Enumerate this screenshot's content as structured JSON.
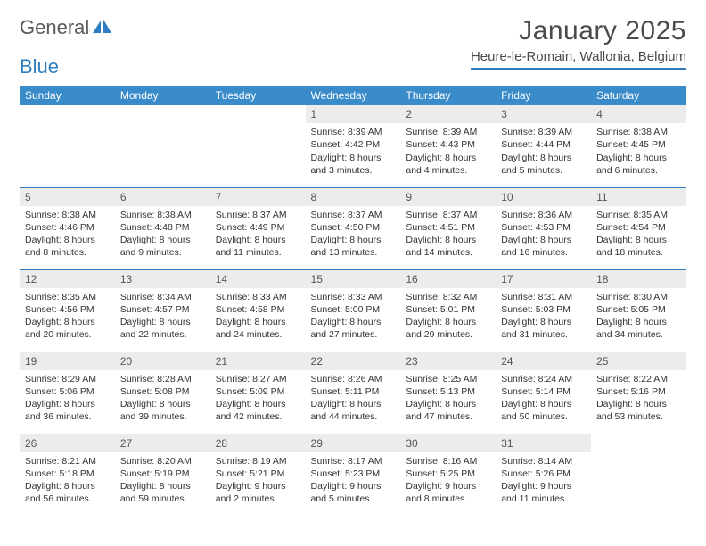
{
  "brand": {
    "word1": "General",
    "word2": "Blue"
  },
  "title": "January 2025",
  "location": "Heure-le-Romain, Wallonia, Belgium",
  "colors": {
    "header_bg": "#3a8bca",
    "accent_line": "#2f7dc0",
    "daynum_bg": "#ececec",
    "text": "#333333",
    "title_text": "#4a4a4a"
  },
  "day_labels": [
    "Sunday",
    "Monday",
    "Tuesday",
    "Wednesday",
    "Thursday",
    "Friday",
    "Saturday"
  ],
  "weeks": [
    [
      {
        "n": "",
        "sr": "",
        "ss": "",
        "dl": ""
      },
      {
        "n": "",
        "sr": "",
        "ss": "",
        "dl": ""
      },
      {
        "n": "",
        "sr": "",
        "ss": "",
        "dl": ""
      },
      {
        "n": "1",
        "sr": "Sunrise: 8:39 AM",
        "ss": "Sunset: 4:42 PM",
        "dl": "Daylight: 8 hours and 3 minutes."
      },
      {
        "n": "2",
        "sr": "Sunrise: 8:39 AM",
        "ss": "Sunset: 4:43 PM",
        "dl": "Daylight: 8 hours and 4 minutes."
      },
      {
        "n": "3",
        "sr": "Sunrise: 8:39 AM",
        "ss": "Sunset: 4:44 PM",
        "dl": "Daylight: 8 hours and 5 minutes."
      },
      {
        "n": "4",
        "sr": "Sunrise: 8:38 AM",
        "ss": "Sunset: 4:45 PM",
        "dl": "Daylight: 8 hours and 6 minutes."
      }
    ],
    [
      {
        "n": "5",
        "sr": "Sunrise: 8:38 AM",
        "ss": "Sunset: 4:46 PM",
        "dl": "Daylight: 8 hours and 8 minutes."
      },
      {
        "n": "6",
        "sr": "Sunrise: 8:38 AM",
        "ss": "Sunset: 4:48 PM",
        "dl": "Daylight: 8 hours and 9 minutes."
      },
      {
        "n": "7",
        "sr": "Sunrise: 8:37 AM",
        "ss": "Sunset: 4:49 PM",
        "dl": "Daylight: 8 hours and 11 minutes."
      },
      {
        "n": "8",
        "sr": "Sunrise: 8:37 AM",
        "ss": "Sunset: 4:50 PM",
        "dl": "Daylight: 8 hours and 13 minutes."
      },
      {
        "n": "9",
        "sr": "Sunrise: 8:37 AM",
        "ss": "Sunset: 4:51 PM",
        "dl": "Daylight: 8 hours and 14 minutes."
      },
      {
        "n": "10",
        "sr": "Sunrise: 8:36 AM",
        "ss": "Sunset: 4:53 PM",
        "dl": "Daylight: 8 hours and 16 minutes."
      },
      {
        "n": "11",
        "sr": "Sunrise: 8:35 AM",
        "ss": "Sunset: 4:54 PM",
        "dl": "Daylight: 8 hours and 18 minutes."
      }
    ],
    [
      {
        "n": "12",
        "sr": "Sunrise: 8:35 AM",
        "ss": "Sunset: 4:56 PM",
        "dl": "Daylight: 8 hours and 20 minutes."
      },
      {
        "n": "13",
        "sr": "Sunrise: 8:34 AM",
        "ss": "Sunset: 4:57 PM",
        "dl": "Daylight: 8 hours and 22 minutes."
      },
      {
        "n": "14",
        "sr": "Sunrise: 8:33 AM",
        "ss": "Sunset: 4:58 PM",
        "dl": "Daylight: 8 hours and 24 minutes."
      },
      {
        "n": "15",
        "sr": "Sunrise: 8:33 AM",
        "ss": "Sunset: 5:00 PM",
        "dl": "Daylight: 8 hours and 27 minutes."
      },
      {
        "n": "16",
        "sr": "Sunrise: 8:32 AM",
        "ss": "Sunset: 5:01 PM",
        "dl": "Daylight: 8 hours and 29 minutes."
      },
      {
        "n": "17",
        "sr": "Sunrise: 8:31 AM",
        "ss": "Sunset: 5:03 PM",
        "dl": "Daylight: 8 hours and 31 minutes."
      },
      {
        "n": "18",
        "sr": "Sunrise: 8:30 AM",
        "ss": "Sunset: 5:05 PM",
        "dl": "Daylight: 8 hours and 34 minutes."
      }
    ],
    [
      {
        "n": "19",
        "sr": "Sunrise: 8:29 AM",
        "ss": "Sunset: 5:06 PM",
        "dl": "Daylight: 8 hours and 36 minutes."
      },
      {
        "n": "20",
        "sr": "Sunrise: 8:28 AM",
        "ss": "Sunset: 5:08 PM",
        "dl": "Daylight: 8 hours and 39 minutes."
      },
      {
        "n": "21",
        "sr": "Sunrise: 8:27 AM",
        "ss": "Sunset: 5:09 PM",
        "dl": "Daylight: 8 hours and 42 minutes."
      },
      {
        "n": "22",
        "sr": "Sunrise: 8:26 AM",
        "ss": "Sunset: 5:11 PM",
        "dl": "Daylight: 8 hours and 44 minutes."
      },
      {
        "n": "23",
        "sr": "Sunrise: 8:25 AM",
        "ss": "Sunset: 5:13 PM",
        "dl": "Daylight: 8 hours and 47 minutes."
      },
      {
        "n": "24",
        "sr": "Sunrise: 8:24 AM",
        "ss": "Sunset: 5:14 PM",
        "dl": "Daylight: 8 hours and 50 minutes."
      },
      {
        "n": "25",
        "sr": "Sunrise: 8:22 AM",
        "ss": "Sunset: 5:16 PM",
        "dl": "Daylight: 8 hours and 53 minutes."
      }
    ],
    [
      {
        "n": "26",
        "sr": "Sunrise: 8:21 AM",
        "ss": "Sunset: 5:18 PM",
        "dl": "Daylight: 8 hours and 56 minutes."
      },
      {
        "n": "27",
        "sr": "Sunrise: 8:20 AM",
        "ss": "Sunset: 5:19 PM",
        "dl": "Daylight: 8 hours and 59 minutes."
      },
      {
        "n": "28",
        "sr": "Sunrise: 8:19 AM",
        "ss": "Sunset: 5:21 PM",
        "dl": "Daylight: 9 hours and 2 minutes."
      },
      {
        "n": "29",
        "sr": "Sunrise: 8:17 AM",
        "ss": "Sunset: 5:23 PM",
        "dl": "Daylight: 9 hours and 5 minutes."
      },
      {
        "n": "30",
        "sr": "Sunrise: 8:16 AM",
        "ss": "Sunset: 5:25 PM",
        "dl": "Daylight: 9 hours and 8 minutes."
      },
      {
        "n": "31",
        "sr": "Sunrise: 8:14 AM",
        "ss": "Sunset: 5:26 PM",
        "dl": "Daylight: 9 hours and 11 minutes."
      },
      {
        "n": "",
        "sr": "",
        "ss": "",
        "dl": ""
      }
    ]
  ]
}
